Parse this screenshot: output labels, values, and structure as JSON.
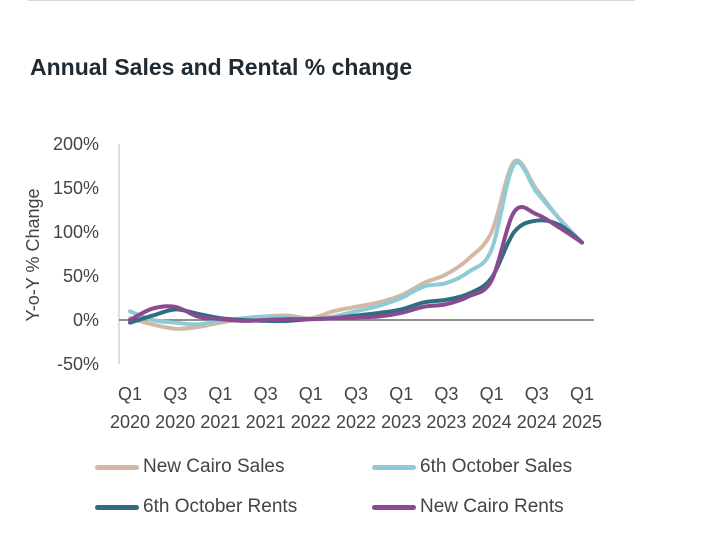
{
  "title": "Annual Sales and Rental % change",
  "chart_data": {
    "type": "line",
    "ylabel": "Y-o-Y % Change",
    "ylim": [
      -50,
      200
    ],
    "yticks": [
      {
        "value": 200,
        "label": "200%"
      },
      {
        "value": 150,
        "label": "150%"
      },
      {
        "value": 100,
        "label": "100%"
      },
      {
        "value": 50,
        "label": "50%"
      },
      {
        "value": 0,
        "label": "0%"
      },
      {
        "value": -50,
        "label": "-50%"
      }
    ],
    "x": [
      "Q1 2020",
      "Q2 2020",
      "Q3 2020",
      "Q4 2020",
      "Q1 2021",
      "Q2 2021",
      "Q3 2021",
      "Q4 2021",
      "Q1 2022",
      "Q2 2022",
      "Q3 2022",
      "Q4 2022",
      "Q1 2023",
      "Q2 2023",
      "Q3 2023",
      "Q4 2023",
      "Q1 2024",
      "Q2 2024",
      "Q3 2024",
      "Q4 2024",
      "Q1 2025"
    ],
    "xticks": [
      {
        "index": 0,
        "top": "Q1",
        "bottom": "2020"
      },
      {
        "index": 2,
        "top": "Q3",
        "bottom": "2020"
      },
      {
        "index": 4,
        "top": "Q1",
        "bottom": "2021"
      },
      {
        "index": 6,
        "top": "Q3",
        "bottom": "2021"
      },
      {
        "index": 8,
        "top": "Q1",
        "bottom": "2022"
      },
      {
        "index": 10,
        "top": "Q3",
        "bottom": "2022"
      },
      {
        "index": 12,
        "top": "Q1",
        "bottom": "2023"
      },
      {
        "index": 14,
        "top": "Q3",
        "bottom": "2023"
      },
      {
        "index": 16,
        "top": "Q1",
        "bottom": "2024"
      },
      {
        "index": 18,
        "top": "Q3",
        "bottom": "2024"
      },
      {
        "index": 20,
        "top": "Q1",
        "bottom": "2025"
      }
    ],
    "series": [
      {
        "name": "New Cairo Sales",
        "color": "#d4b8a3",
        "values": [
          2,
          -5,
          -10,
          -8,
          -3,
          1,
          4,
          5,
          2,
          10,
          15,
          20,
          28,
          42,
          52,
          70,
          100,
          180,
          148,
          115,
          88
        ]
      },
      {
        "name": "6th October Sales",
        "color": "#8fcbd6",
        "values": [
          10,
          0,
          -3,
          -5,
          -1,
          2,
          4,
          3,
          1,
          4,
          10,
          16,
          25,
          38,
          42,
          55,
          80,
          177,
          145,
          115,
          88
        ]
      },
      {
        "name": "6th October Rents",
        "color": "#2f6d80",
        "values": [
          -3,
          5,
          12,
          7,
          2,
          0,
          -1,
          -1,
          1,
          2,
          5,
          8,
          12,
          20,
          23,
          30,
          48,
          100,
          113,
          108,
          88
        ]
      },
      {
        "name": "New Cairo Rents",
        "color": "#8a4a8f",
        "values": [
          0,
          13,
          15,
          4,
          1,
          -1,
          0,
          1,
          1,
          2,
          3,
          4,
          8,
          15,
          18,
          27,
          45,
          123,
          120,
          105,
          88
        ]
      }
    ],
    "legend": [
      {
        "name": "New Cairo Sales",
        "color": "#d4b8a3"
      },
      {
        "name": "6th October Sales",
        "color": "#8fcbd6"
      },
      {
        "name": "6th October Rents",
        "color": "#2f6d80"
      },
      {
        "name": "New Cairo Rents",
        "color": "#8a4a8f"
      }
    ]
  }
}
